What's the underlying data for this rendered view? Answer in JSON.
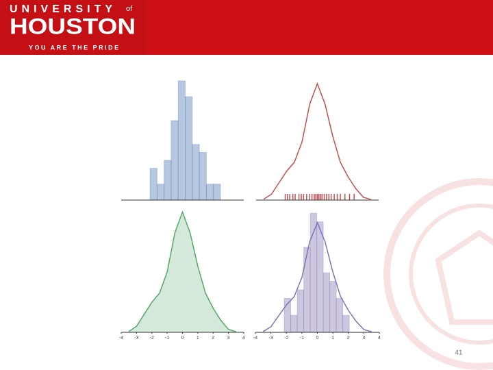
{
  "header": {
    "line1": "UNIVERSITY",
    "of": "of",
    "name": "HOUSTON",
    "tagline": "YOU ARE THE PRIDE"
  },
  "page_number": "41",
  "chart_data": [
    {
      "type": "histogram",
      "color": "#4c72b0",
      "bins": [
        -2.12,
        -1.66,
        -1.2,
        -0.74,
        -0.28,
        0.18,
        0.64,
        1.1,
        1.56,
        2.02,
        2.48
      ],
      "values": [
        4,
        2,
        5,
        10,
        15,
        13,
        7,
        6,
        2,
        2
      ],
      "xlim": [
        -4,
        4
      ],
      "ylim": [
        0,
        15
      ]
    },
    {
      "type": "line",
      "color": "#c44e52",
      "x": [
        -3.5,
        -3,
        -2.5,
        -2,
        -1.5,
        -1,
        -0.5,
        0,
        0.5,
        1,
        1.5,
        2,
        2.5,
        3,
        3.5
      ],
      "values": [
        0.003,
        0.02,
        0.06,
        0.1,
        0.13,
        0.2,
        0.33,
        0.4,
        0.33,
        0.22,
        0.13,
        0.08,
        0.04,
        0.01,
        0.002
      ],
      "rug": [
        -2.1,
        -1.95,
        -1.8,
        -1.6,
        -1.45,
        -1.2,
        -1.05,
        -0.9,
        -0.7,
        -0.5,
        -0.35,
        -0.2,
        -0.1,
        0,
        0.1,
        0.2,
        0.3,
        0.45,
        0.6,
        0.75,
        0.9,
        1.1,
        1.3,
        1.5,
        1.8,
        2.1,
        2.4
      ],
      "xlim": [
        -4,
        4
      ],
      "ylim": [
        0,
        0.41
      ]
    },
    {
      "type": "area",
      "color": "#55a868",
      "x": [
        -3.5,
        -3,
        -2.5,
        -2,
        -1.5,
        -1,
        -0.5,
        0,
        0.5,
        1,
        1.5,
        2,
        2.5,
        3,
        3.5
      ],
      "values": [
        0.003,
        0.02,
        0.06,
        0.1,
        0.13,
        0.2,
        0.33,
        0.4,
        0.33,
        0.22,
        0.13,
        0.08,
        0.04,
        0.01,
        0.002
      ],
      "xlim": [
        -4,
        4
      ],
      "ylim": [
        0,
        0.41
      ],
      "xticks": [
        -4,
        -3,
        -2,
        -1,
        0,
        1,
        2,
        3,
        4
      ]
    },
    {
      "type": "histogram",
      "color": "#8172b2",
      "bins": [
        -2.14,
        -1.72,
        -1.3,
        -0.88,
        -0.46,
        -0.04,
        0.38,
        0.8,
        1.22,
        1.64,
        2.06
      ],
      "values": [
        4,
        2,
        5,
        10,
        14,
        13,
        7,
        6,
        4,
        2
      ],
      "kde": {
        "x": [
          -3.5,
          -3,
          -2.5,
          -2,
          -1.5,
          -1,
          -0.5,
          0,
          0.5,
          1,
          1.5,
          2,
          2.5,
          3,
          3.5
        ],
        "values": [
          0.003,
          0.02,
          0.06,
          0.1,
          0.13,
          0.2,
          0.33,
          0.4,
          0.33,
          0.22,
          0.13,
          0.08,
          0.04,
          0.01,
          0.002
        ],
        "axis": "y2"
      },
      "xlim": [
        -4,
        4
      ],
      "ylim": [
        0,
        14.5
      ],
      "y2lim": [
        0,
        0.45
      ],
      "xticks": [
        -4,
        -3,
        -2,
        -1,
        0,
        1,
        2,
        3,
        4
      ]
    }
  ]
}
